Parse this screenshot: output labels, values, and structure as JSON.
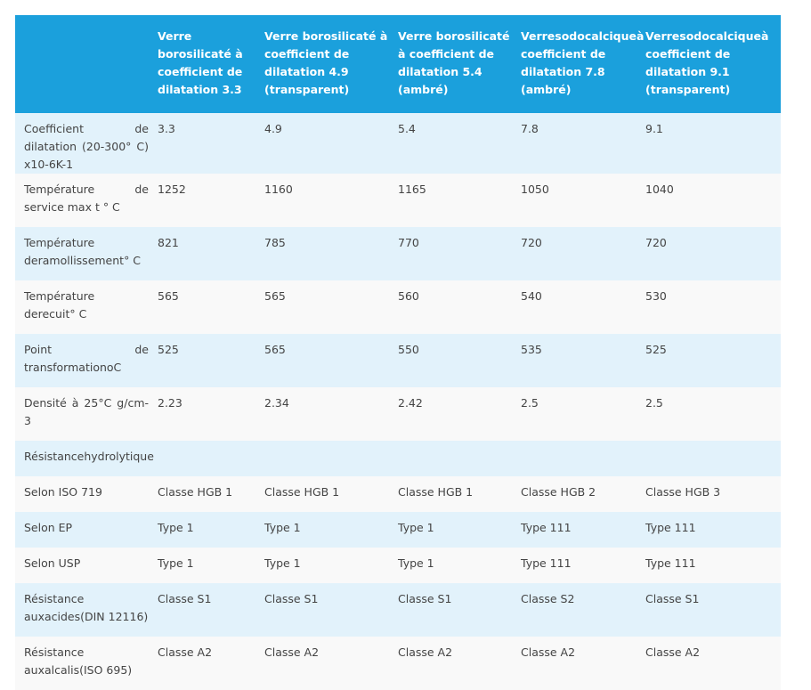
{
  "table": {
    "header": [
      "",
      "Verre borosilicaté à coefficient de dilatation 3.3",
      "Verre borosilicaté à coefficient de dilatation 4.9 (transparent)",
      "Verre borosilicaté à coefficient de dilatation 5.4 (ambré)",
      "Verresodocalciqueà coefficient de dilatation 7.8 (ambré)",
      "Verresodocalciqueà coefficient de dilatation 9.1 (transparent)"
    ],
    "rows": [
      [
        "Coefficient de dilatation (20-300° C) x10-6K-1",
        "3.3",
        "4.9",
        "5.4",
        "7.8",
        "9.1"
      ],
      [
        "Température de service max t ° C",
        "1252",
        "1160",
        "1165",
        "1050",
        "1040"
      ],
      [
        "Température deramollissement° C",
        "821",
        "785",
        "770",
        "720",
        "720"
      ],
      [
        "Température derecuit° C",
        "565",
        "565",
        "560",
        "540",
        "530"
      ],
      [
        "Point de transformationoC",
        "525",
        "565",
        "550",
        "535",
        "525"
      ],
      [
        "Densité à 25°C g/cm-3",
        "2.23",
        "2.34",
        "2.42",
        "2.5",
        "2.5"
      ],
      [
        "Résistancehydrolytique"
      ],
      [
        "Selon ISO 719",
        "Classe HGB 1",
        "Classe HGB 1",
        "Classe HGB 1",
        "Classe HGB 2",
        "Classe HGB 3"
      ],
      [
        "Selon EP",
        "Type 1",
        "Type 1",
        "Type 1",
        "Type 111",
        "Type 111"
      ],
      [
        "Selon USP",
        "Type 1",
        "Type 1",
        "Type 1",
        "Type 111",
        "Type 111"
      ],
      [
        "Résistance auxacides(DIN 12116)",
        "Classe S1",
        "Classe S1",
        "Classe S1",
        "Classe S2",
        "Classe S1"
      ],
      [
        "Résistance auxalcalis(ISO 695)",
        "Classe A2",
        "Classe A2",
        "Classe A2",
        "Classe A2",
        "Classe A2"
      ]
    ]
  }
}
